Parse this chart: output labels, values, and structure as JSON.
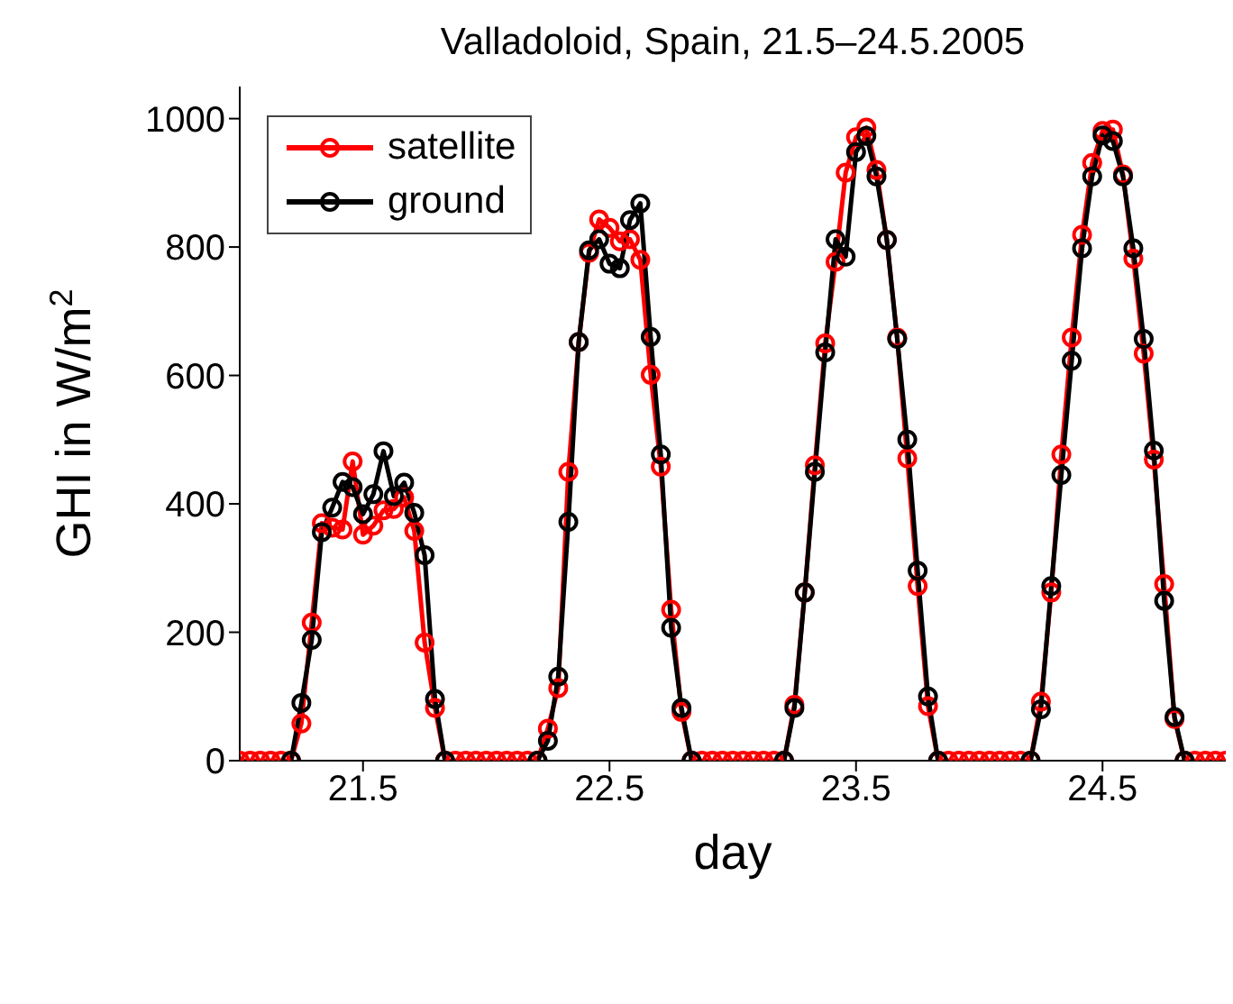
{
  "chart_data": {
    "type": "line",
    "title": "Valladoloid, Spain, 21.5–24.5.2005",
    "xlabel": "day",
    "ylabel": "GHI in W/m$^{2}$",
    "xlim": [
      21,
      25
    ],
    "xticks": [
      21.5,
      22.5,
      23.5,
      24.5
    ],
    "ylim": [
      0,
      1050
    ],
    "yticks": [
      0,
      200,
      400,
      600,
      800,
      1000
    ],
    "grid": false,
    "legend": "top left",
    "marker": "circle",
    "line_style": "solid",
    "series": [
      {
        "name": "satellite",
        "color": "#ff0000",
        "x": [
          21,
          21.042,
          21.083,
          21.125,
          21.167,
          21.208,
          21.25,
          21.292,
          21.333,
          21.375,
          21.417,
          21.458,
          21.5,
          21.542,
          21.583,
          21.625,
          21.667,
          21.708,
          21.75,
          21.792,
          21.833,
          21.875,
          21.917,
          21.958,
          22,
          22.042,
          22.083,
          22.125,
          22.167,
          22.208,
          22.25,
          22.292,
          22.333,
          22.375,
          22.417,
          22.458,
          22.5,
          22.542,
          22.583,
          22.625,
          22.667,
          22.708,
          22.75,
          22.792,
          22.833,
          22.875,
          22.917,
          22.958,
          23,
          23.042,
          23.083,
          23.125,
          23.167,
          23.208,
          23.25,
          23.292,
          23.333,
          23.375,
          23.417,
          23.458,
          23.5,
          23.542,
          23.583,
          23.625,
          23.667,
          23.708,
          23.75,
          23.792,
          23.833,
          23.875,
          23.917,
          23.958,
          24,
          24.042,
          24.083,
          24.125,
          24.167,
          24.208,
          24.25,
          24.292,
          24.333,
          24.375,
          24.417,
          24.458,
          24.5,
          24.542,
          24.583,
          24.625,
          24.667,
          24.708,
          24.75,
          24.792,
          24.833,
          24.875,
          24.917,
          24.958,
          25
        ],
        "values": [
          0,
          0,
          0,
          0,
          0,
          0,
          58,
          215,
          370,
          363,
          360,
          466,
          352,
          366,
          390,
          392,
          410,
          358,
          184,
          82,
          0,
          0,
          0,
          0,
          0,
          0,
          0,
          0,
          0,
          0,
          50,
          113,
          450,
          652,
          791,
          843,
          830,
          809,
          812,
          780,
          601,
          458,
          235,
          76,
          0,
          0,
          0,
          0,
          0,
          0,
          0,
          0,
          0,
          0,
          87,
          262,
          460,
          650,
          777,
          916,
          971,
          986,
          920,
          811,
          659,
          471,
          272,
          85,
          0,
          0,
          0,
          0,
          0,
          0,
          0,
          0,
          0,
          0,
          92,
          262,
          477,
          659,
          819,
          931,
          981,
          983,
          913,
          782,
          634,
          469,
          275,
          65,
          0,
          0,
          0,
          0,
          0
        ]
      },
      {
        "name": "ground",
        "color": "#000000",
        "x": [
          21.208,
          21.25,
          21.292,
          21.333,
          21.375,
          21.417,
          21.458,
          21.5,
          21.542,
          21.583,
          21.625,
          21.667,
          21.708,
          21.75,
          21.792,
          21.833,
          22,
          22.208,
          22.25,
          22.292,
          22.333,
          22.375,
          22.417,
          22.458,
          22.5,
          22.542,
          22.583,
          22.625,
          22.667,
          22.708,
          22.75,
          22.792,
          22.833,
          23,
          23.208,
          23.25,
          23.292,
          23.333,
          23.375,
          23.417,
          23.458,
          23.5,
          23.542,
          23.583,
          23.625,
          23.667,
          23.708,
          23.75,
          23.792,
          23.833,
          24,
          24.208,
          24.25,
          24.292,
          24.333,
          24.375,
          24.417,
          24.458,
          24.5,
          24.542,
          24.583,
          24.625,
          24.667,
          24.708,
          24.75,
          24.792,
          24.833
        ],
        "values": [
          0,
          90,
          188,
          356,
          394,
          434,
          426,
          384,
          415,
          482,
          412,
          433,
          386,
          320,
          96,
          0,
          null,
          0,
          31,
          131,
          372,
          652,
          795,
          812,
          774,
          767,
          842,
          868,
          660,
          477,
          207,
          82,
          0,
          null,
          0,
          82,
          262,
          450,
          636,
          812,
          785,
          948,
          973,
          910,
          811,
          657,
          500,
          296,
          100,
          0,
          null,
          0,
          80,
          272,
          445,
          623,
          798,
          910,
          974,
          965,
          910,
          798,
          657,
          483,
          249,
          68,
          0
        ]
      }
    ]
  }
}
